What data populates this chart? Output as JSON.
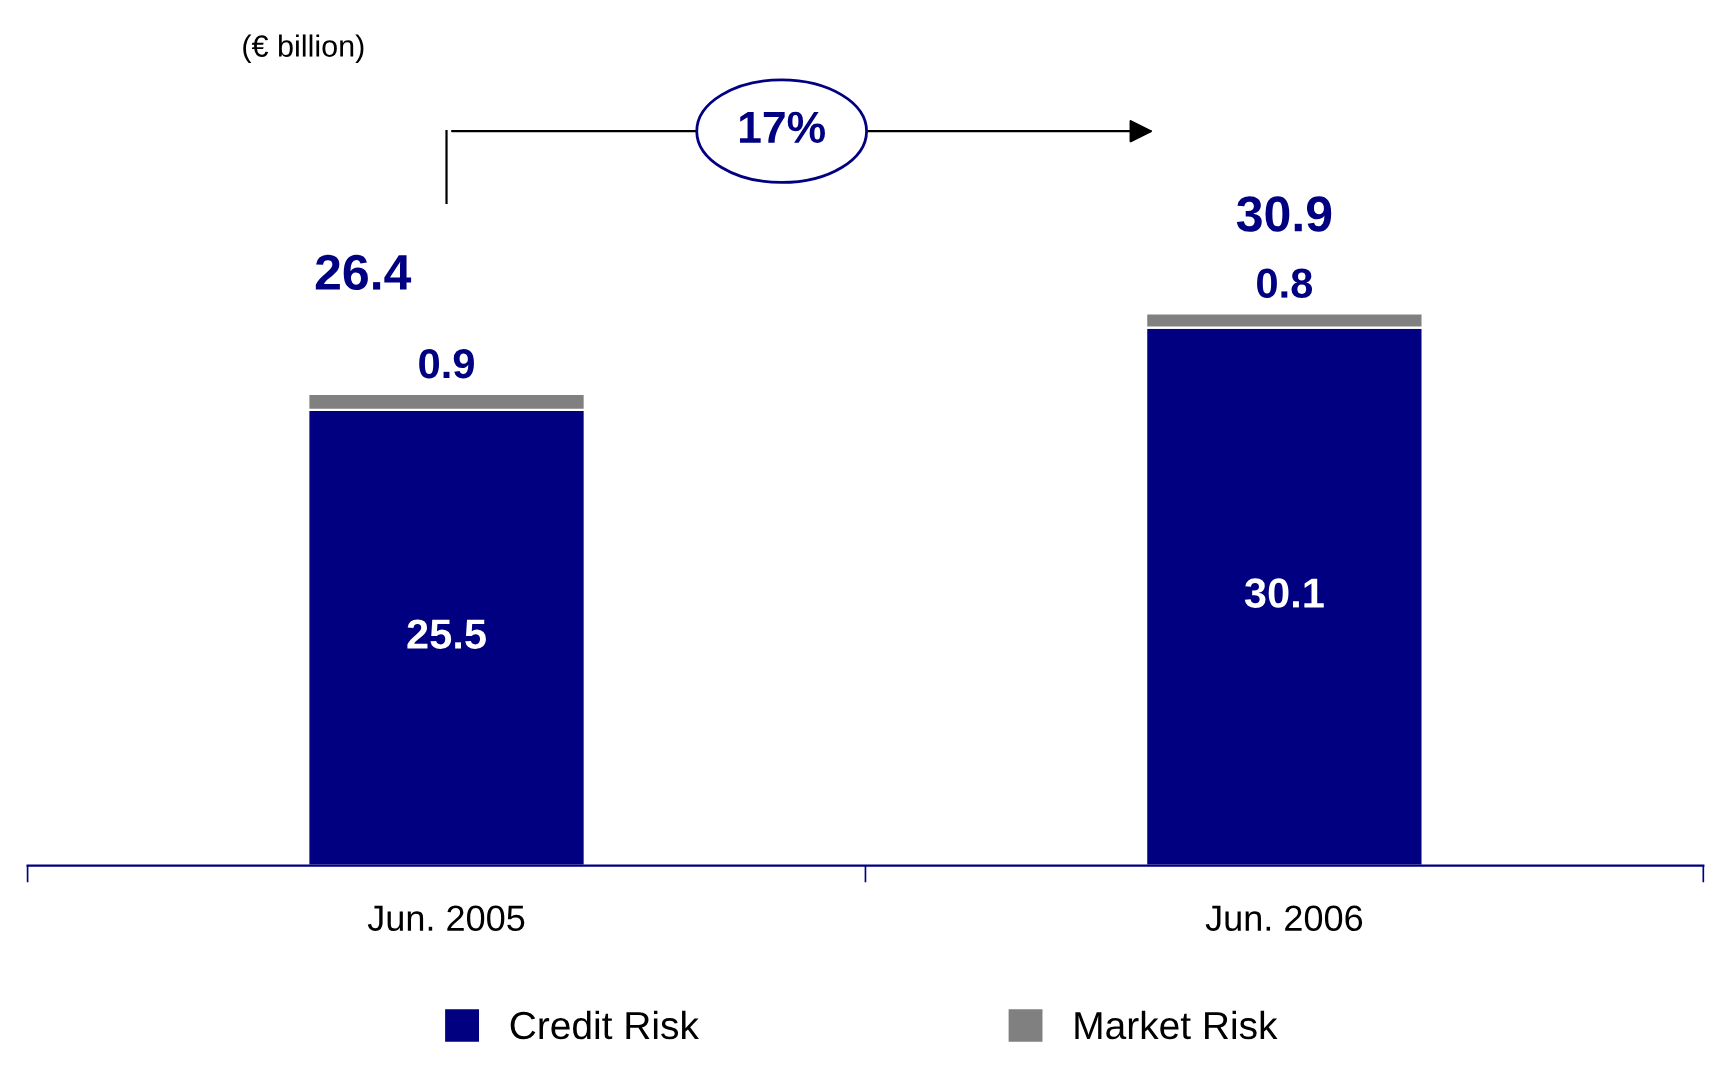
{
  "chart_data": {
    "type": "bar",
    "stacked": true,
    "categories": [
      "Jun. 2005",
      "Jun. 2006"
    ],
    "series": [
      {
        "name": "Credit Risk",
        "color": "#000080",
        "values": [
          25.5,
          30.1
        ]
      },
      {
        "name": "Market Risk",
        "color": "#808080",
        "values": [
          0.9,
          0.8
        ]
      }
    ],
    "data_labels": true,
    "totals": [
      "26.4",
      "30.9"
    ],
    "annotations": [
      "(€ billion)",
      "17%"
    ],
    "legend": "bottom",
    "grid": false
  }
}
